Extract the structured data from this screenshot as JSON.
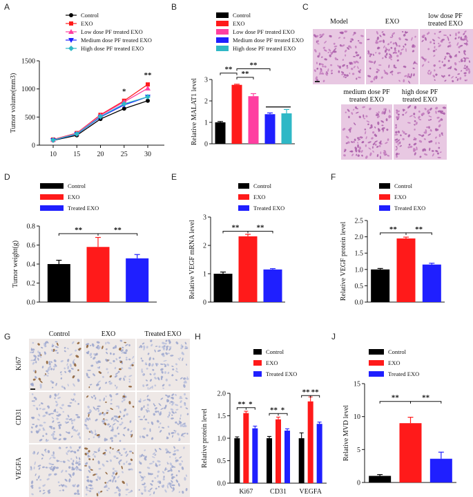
{
  "figure": {
    "panel_letters": [
      "A",
      "B",
      "C",
      "D",
      "E",
      "F",
      "G",
      "H",
      "J"
    ]
  },
  "colors": {
    "control": "#000000",
    "exo": "#ff1a1a",
    "low": "#ff3fa0",
    "medium": "#1f1fff",
    "high": "#2fb8c6",
    "tissue_he": "#e8c8e2",
    "tissue_ihc": "#eee8e6"
  },
  "chart_data": [
    {
      "id": "A",
      "type": "line",
      "ylabel": "Tumor volume(mm3)",
      "xlabel": "",
      "x": [
        10,
        15,
        20,
        25,
        30
      ],
      "ylim": [
        0,
        1500
      ],
      "xticks": [
        "10",
        "15",
        "20",
        "25",
        "30"
      ],
      "yticks": [
        "0",
        "500",
        "1000",
        "1500"
      ],
      "series": [
        {
          "name": "Control",
          "color_key": "control",
          "marker": "circle",
          "values": [
            85,
            175,
            465,
            650,
            790
          ]
        },
        {
          "name": "EXO",
          "color_key": "exo",
          "marker": "square",
          "values": [
            100,
            215,
            540,
            790,
            1080
          ]
        },
        {
          "name": "Low dose PF treated EXO",
          "color_key": "low",
          "marker": "triangle-up",
          "values": [
            95,
            210,
            530,
            770,
            1010
          ]
        },
        {
          "name": "Medium dose PF treated EXO",
          "color_key": "medium",
          "marker": "triangle-down",
          "values": [
            88,
            195,
            500,
            715,
            860
          ]
        },
        {
          "name": "High dose PF treated EXO",
          "color_key": "high",
          "marker": "diamond",
          "values": [
            90,
            200,
            510,
            735,
            860
          ]
        }
      ],
      "annotations": [
        {
          "x": 25,
          "text": "*"
        },
        {
          "x": 30,
          "text": "**"
        }
      ]
    },
    {
      "id": "B",
      "type": "bar",
      "ylabel": "Relative MALAT1  level",
      "ylim": [
        0,
        3
      ],
      "yticks": [
        "0",
        "1",
        "2",
        "3"
      ],
      "categories": [
        "Control",
        "EXO",
        "Low dose PF treated EXO",
        "Medium dose PF treated EXO",
        "High dose PF treated EXO"
      ],
      "color_keys": [
        "control",
        "exo",
        "low",
        "medium",
        "high"
      ],
      "values": [
        1.0,
        2.75,
        2.22,
        1.38,
        1.42
      ],
      "errors": [
        0.04,
        0.03,
        0.12,
        0.06,
        0.18
      ],
      "brackets": [
        {
          "from": 0,
          "to": 1,
          "level": 3.3,
          "text": "**"
        },
        {
          "from": 1,
          "to": 2,
          "level": 3.1,
          "text": "**"
        },
        {
          "from": 1,
          "to": 3,
          "level": 3.5,
          "text": "**"
        },
        {
          "from": 3,
          "to": 4,
          "level": 1.72,
          "text": ""
        }
      ]
    },
    {
      "id": "D",
      "type": "bar",
      "ylabel": "Tumor weight(g)",
      "ylim": [
        0,
        0.8
      ],
      "yticks": [
        "0.0",
        "0.2",
        "0.4",
        "0.6",
        "0.8"
      ],
      "categories": [
        "Control",
        "EXO",
        "Treated EXO"
      ],
      "color_keys": [
        "control",
        "exo",
        "medium"
      ],
      "values": [
        0.4,
        0.58,
        0.46
      ],
      "errors": [
        0.04,
        0.1,
        0.04
      ],
      "brackets": [
        {
          "from": 0,
          "to": 1,
          "level": 0.72,
          "text": "**"
        },
        {
          "from": 1,
          "to": 2,
          "level": 0.72,
          "text": "**"
        }
      ]
    },
    {
      "id": "E",
      "type": "bar",
      "ylabel": "Relative VEGF mRNA  level",
      "ylim": [
        0,
        3
      ],
      "yticks": [
        "0",
        "1",
        "2",
        "3"
      ],
      "categories": [
        "Control",
        "EXO",
        "Treated EXO"
      ],
      "color_keys": [
        "control",
        "exo",
        "medium"
      ],
      "values": [
        1.0,
        2.32,
        1.15
      ],
      "errors": [
        0.06,
        0.07,
        0.03
      ],
      "brackets": [
        {
          "from": 0,
          "to": 1,
          "level": 2.5,
          "text": "**"
        },
        {
          "from": 1,
          "to": 2,
          "level": 2.5,
          "text": "**"
        }
      ]
    },
    {
      "id": "F",
      "type": "bar",
      "ylabel": "Relative VEGF protein  level",
      "ylim": [
        0,
        2.5
      ],
      "yticks": [
        "0.0",
        "0.5",
        "1.0",
        "1.5",
        "2.0",
        "2.5"
      ],
      "categories": [
        "Control",
        "EXO",
        "Treated EXO"
      ],
      "color_keys": [
        "control",
        "exo",
        "medium"
      ],
      "values": [
        1.0,
        1.95,
        1.15
      ],
      "errors": [
        0.03,
        0.04,
        0.04
      ],
      "brackets": [
        {
          "from": 0,
          "to": 1,
          "level": 2.12,
          "text": "**"
        },
        {
          "from": 1,
          "to": 2,
          "level": 2.12,
          "text": "**"
        }
      ]
    },
    {
      "id": "H",
      "type": "grouped-bar",
      "ylabel": "Relative protein  level",
      "ylim": [
        0,
        2.0
      ],
      "yticks": [
        "0.0",
        "0.5",
        "1.0",
        "1.5",
        "2.0"
      ],
      "categories": [
        "Ki67",
        "CD31",
        "VEGFA"
      ],
      "series": [
        {
          "name": "Control",
          "color_key": "control",
          "values": [
            1.0,
            1.0,
            1.0
          ],
          "errors": [
            0.03,
            0.04,
            0.12
          ]
        },
        {
          "name": "EXO",
          "color_key": "exo",
          "values": [
            1.56,
            1.42,
            1.82
          ],
          "errors": [
            0.04,
            0.05,
            0.1
          ]
        },
        {
          "name": "Treated EXO",
          "color_key": "medium",
          "values": [
            1.22,
            1.17,
            1.32
          ],
          "errors": [
            0.05,
            0.04,
            0.04
          ]
        }
      ],
      "brackets": [
        {
          "group": 0,
          "text_left": "**",
          "text_right": "*",
          "level": 1.68
        },
        {
          "group": 1,
          "text_left": "**",
          "text_right": "*",
          "level": 1.55
        },
        {
          "group": 2,
          "text_left": "**",
          "text_right": "**",
          "level": 1.95
        }
      ]
    },
    {
      "id": "J",
      "type": "bar",
      "ylabel": "Relative MVD level",
      "ylim": [
        0,
        15
      ],
      "yticks": [
        "0",
        "5",
        "10",
        "15"
      ],
      "categories": [
        "Control",
        "EXO",
        "Treated EXO"
      ],
      "color_keys": [
        "control",
        "exo",
        "medium"
      ],
      "values": [
        1.0,
        9.0,
        3.6
      ],
      "errors": [
        0.2,
        0.9,
        1.0
      ],
      "brackets": [
        {
          "from": 0,
          "to": 1,
          "level": 12.3,
          "text": "**"
        },
        {
          "from": 1,
          "to": 2,
          "level": 12.3,
          "text": "**"
        }
      ]
    }
  ],
  "panel_c": {
    "labels": [
      "Model",
      "EXO",
      "low dose PF\ntreated EXO",
      "medium dose PF\ntreated EXO",
      "high dose PF\ntreated EXO"
    ]
  },
  "panel_g": {
    "columns": [
      "Control",
      "EXO",
      "Treated EXO"
    ],
    "rows": [
      "Ki67",
      "CD31",
      "VEGFA"
    ]
  }
}
